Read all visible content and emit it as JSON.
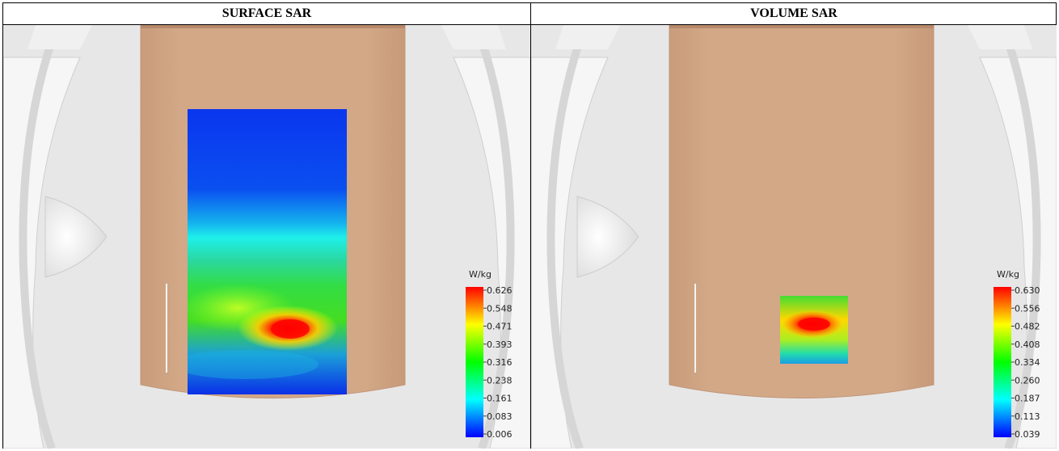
{
  "panels": [
    {
      "title": "SURFACE SAR",
      "legend": {
        "unit": "W/kg",
        "ticks": [
          "0.626",
          "0.548",
          "0.471",
          "0.393",
          "0.316",
          "0.238",
          "0.161",
          "0.083",
          "0.006"
        ]
      }
    },
    {
      "title": "VOLUME SAR",
      "legend": {
        "unit": "W/kg",
        "ticks": [
          "0.630",
          "0.556",
          "0.482",
          "0.408",
          "0.334",
          "0.260",
          "0.187",
          "0.113",
          "0.039"
        ]
      }
    }
  ],
  "colors": {
    "phantom": "#d2a887",
    "background": "#e7e7e7",
    "ring": "#f7f7f7"
  }
}
